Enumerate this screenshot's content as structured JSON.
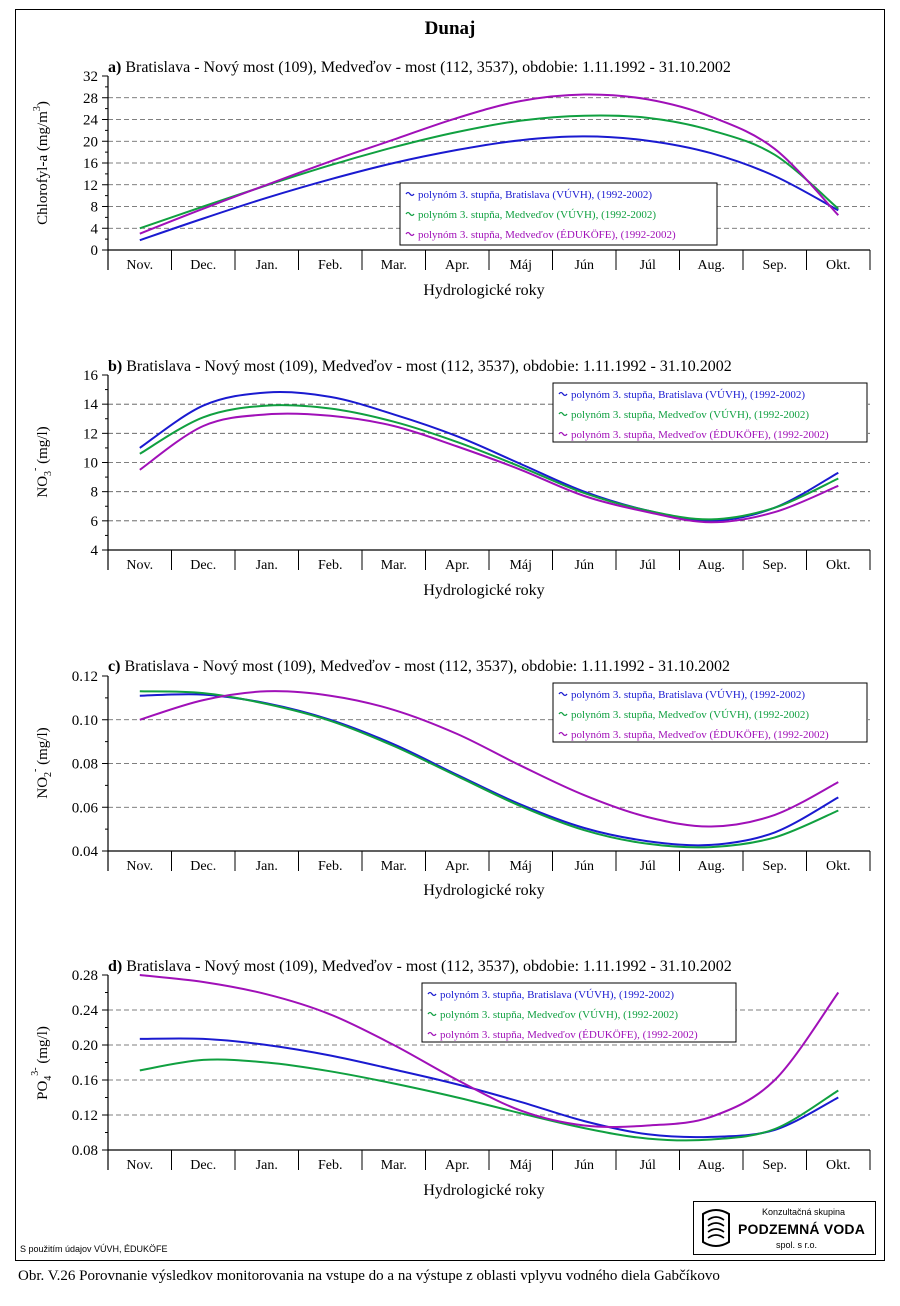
{
  "page_title": "Dunaj",
  "footer_note": "S použitím údajov VÚVH, ÉDUKÖFE",
  "caption": "Obr. V.26 Porovnanie výsledkov monitorovania na vstupe do a na výstupe z oblasti vplyvu vodného diela Gabčíkovo",
  "logo": {
    "top": "Konzultačná skupina",
    "main": "PODZEMNÁ VODA",
    "bottom": "spol. s r.o."
  },
  "colors": {
    "bratislava_vuvh": "#1a1ad0",
    "medvedov_vuvh": "#10a040",
    "medvedov_edukofe": "#a010b8"
  },
  "chart_data": [
    {
      "type": "line",
      "title": "a) Bratislava - Nový most (109), Medveďov - most (112, 3537), obdobie: 1.11.1992 - 31.10.2002",
      "title_bold_prefix": "a)",
      "title_rest": " Bratislava - Nový most (109), Medveďov - most (112, 3537), obdobie: 1.11.1992 - 31.10.2002",
      "ylabel": "Chlorofyl-a  (mg/m³)",
      "ylabel_main": "Chlorofyl-a  (mg/m",
      "ylabel_sup": "3",
      "ylabel_end": ")",
      "xlabel": "Hydrologické roky",
      "categories": [
        "Nov.",
        "Dec.",
        "Jan.",
        "Feb.",
        "Mar.",
        "Apr.",
        "Máj",
        "Jún",
        "Júl",
        "Aug.",
        "Sep.",
        "Okt."
      ],
      "ylim": [
        0,
        32
      ],
      "yticks": [
        "0",
        "4",
        "8",
        "12",
        "16",
        "20",
        "24",
        "28",
        "32"
      ],
      "ytick_values": [
        0,
        4,
        8,
        12,
        16,
        20,
        24,
        28,
        32
      ],
      "legend_position": "center-right",
      "series": [
        {
          "name": "polynóm 3. stupňa, Bratislava (VÚVH), (1992-2002)",
          "color": "#1a1ad0",
          "values": [
            1.8,
            5.8,
            9.6,
            13.0,
            16.0,
            18.4,
            20.2,
            20.9,
            20.1,
            17.8,
            13.6,
            7.3
          ]
        },
        {
          "name": "polynóm 3. stupňa, Medveďov (VÚVH), (1992-2002)",
          "color": "#10a040",
          "values": [
            4.0,
            8.0,
            11.9,
            15.6,
            18.9,
            21.7,
            23.8,
            24.7,
            24.3,
            22.0,
            17.5,
            7.6
          ]
        },
        {
          "name": "polynóm 3. stupňa, Medveďov (ÉDUKÖFE), (1992-2002)",
          "color": "#a010b8",
          "values": [
            3.0,
            7.6,
            12.0,
            16.3,
            20.3,
            24.3,
            27.4,
            28.6,
            27.7,
            24.5,
            18.6,
            6.4
          ]
        }
      ]
    },
    {
      "type": "line",
      "title": "b) Bratislava - Nový most (109), Medveďov - most (112, 3537), obdobie: 1.11.1992 - 31.10.2002",
      "title_bold_prefix": "b)",
      "title_rest": " Bratislava - Nový most (109), Medveďov - most (112, 3537), obdobie: 1.11.1992 - 31.10.2002",
      "ylabel": "NO₃⁻  (mg/l)",
      "ylabel_main": "NO",
      "ylabel_sub": "3",
      "ylabel_sup": "-",
      "ylabel_end": "  (mg/l)",
      "xlabel": "Hydrologické roky",
      "categories": [
        "Nov.",
        "Dec.",
        "Jan.",
        "Feb.",
        "Mar.",
        "Apr.",
        "Máj",
        "Jún",
        "Júl",
        "Aug.",
        "Sep.",
        "Okt."
      ],
      "ylim": [
        4,
        16
      ],
      "yticks": [
        "4",
        "6",
        "8",
        "10",
        "12",
        "14",
        "16"
      ],
      "ytick_values": [
        4,
        6,
        8,
        10,
        12,
        14,
        16
      ],
      "legend_position": "top-right",
      "series": [
        {
          "name": "polynóm 3. stupňa, Bratislava (VÚVH), (1992-2002)",
          "color": "#1a1ad0",
          "values": [
            11.0,
            13.9,
            14.8,
            14.5,
            13.3,
            11.8,
            9.9,
            8.0,
            6.7,
            6.0,
            6.9,
            9.3
          ]
        },
        {
          "name": "polynóm 3. stupňa, Medveďov (VÚVH), (1992-2002)",
          "color": "#10a040",
          "values": [
            10.6,
            13.1,
            13.9,
            13.7,
            12.8,
            11.4,
            9.7,
            7.9,
            6.7,
            6.1,
            6.9,
            8.9
          ]
        },
        {
          "name": "polynóm 3. stupňa, Medveďov (ÉDUKÖFE), (1992-2002)",
          "color": "#a010b8",
          "values": [
            9.5,
            12.5,
            13.3,
            13.2,
            12.5,
            11.1,
            9.5,
            7.7,
            6.6,
            5.9,
            6.6,
            8.4
          ]
        }
      ]
    },
    {
      "type": "line",
      "title": "c) Bratislava - Nový most (109), Medveďov - most (112, 3537), obdobie: 1.11.1992 - 31.10.2002",
      "title_bold_prefix": "c)",
      "title_rest": " Bratislava - Nový most (109), Medveďov - most (112, 3537), obdobie: 1.11.1992 - 31.10.2002",
      "ylabel": "NO₂⁻  (mg/l)",
      "ylabel_main": "NO",
      "ylabel_sub": "2",
      "ylabel_sup": "-",
      "ylabel_end": "  (mg/l)",
      "xlabel": "Hydrologické roky",
      "categories": [
        "Nov.",
        "Dec.",
        "Jan.",
        "Feb.",
        "Mar.",
        "Apr.",
        "Máj",
        "Jún",
        "Júl",
        "Aug.",
        "Sep.",
        "Okt."
      ],
      "ylim": [
        0.04,
        0.12
      ],
      "yticks": [
        "0.04",
        "0.06",
        "0.08",
        "0.10",
        "0.12"
      ],
      "ytick_values": [
        0.04,
        0.06,
        0.08,
        0.1,
        0.12
      ],
      "legend_position": "top-right",
      "series": [
        {
          "name": "polynóm 3. stupňa, Bratislava (VÚVH), (1992-2002)",
          "color": "#1a1ad0",
          "values": [
            0.111,
            0.1115,
            0.1075,
            0.1,
            0.0888,
            0.0748,
            0.0612,
            0.0505,
            0.0445,
            0.0428,
            0.0485,
            0.0645
          ]
        },
        {
          "name": "polynóm 3. stupňa, Medveďov (VÚVH), (1992-2002)",
          "color": "#10a040",
          "values": [
            0.113,
            0.1122,
            0.1072,
            0.0995,
            0.088,
            0.0742,
            0.0605,
            0.0495,
            0.0433,
            0.0418,
            0.0462,
            0.0585
          ]
        },
        {
          "name": "polynóm 3. stupňa, Medveďov (ÉDUKÖFE), (1992-2002)",
          "color": "#a010b8",
          "values": [
            0.1,
            0.109,
            0.113,
            0.111,
            0.1045,
            0.0935,
            0.079,
            0.0655,
            0.0555,
            0.0512,
            0.0565,
            0.0715
          ]
        }
      ]
    },
    {
      "type": "line",
      "title": "d) Bratislava - Nový most (109), Medveďov - most (112, 3537), obdobie: 1.11.1992 - 31.10.2002",
      "title_bold_prefix": "d)",
      "title_rest": " Bratislava - Nový most (109), Medveďov - most (112, 3537), obdobie: 1.11.1992 - 31.10.2002",
      "ylabel": "PO₄³⁻  (mg/l)",
      "ylabel_main": "PO",
      "ylabel_sub": "4",
      "ylabel_sup": "3-",
      "ylabel_end": "  (mg/l)",
      "xlabel": "Hydrologické roky",
      "categories": [
        "Nov.",
        "Dec.",
        "Jan.",
        "Feb.",
        "Mar.",
        "Apr.",
        "Máj",
        "Jún",
        "Júl",
        "Aug.",
        "Sep.",
        "Okt."
      ],
      "ylim": [
        0.08,
        0.28
      ],
      "yticks": [
        "0.08",
        "0.12",
        "0.16",
        "0.20",
        "0.24",
        "0.28"
      ],
      "ytick_values": [
        0.08,
        0.12,
        0.16,
        0.2,
        0.24,
        0.28
      ],
      "legend_position": "top-right",
      "series": [
        {
          "name": "polynóm 3. stupňa, Bratislava (VÚVH), (1992-2002)",
          "color": "#1a1ad0",
          "values": [
            0.207,
            0.207,
            0.2,
            0.188,
            0.172,
            0.155,
            0.135,
            0.113,
            0.098,
            0.095,
            0.103,
            0.14
          ]
        },
        {
          "name": "polynóm 3. stupňa, Medveďov (VÚVH), (1992-2002)",
          "color": "#10a040",
          "values": [
            0.171,
            0.183,
            0.18,
            0.17,
            0.156,
            0.14,
            0.122,
            0.105,
            0.093,
            0.092,
            0.104,
            0.148
          ]
        },
        {
          "name": "polynóm 3. stupňa, Medveďov (ÉDUKÖFE), (1992-2002)",
          "color": "#a010b8",
          "values": [
            0.28,
            0.272,
            0.258,
            0.235,
            0.2,
            0.16,
            0.125,
            0.108,
            0.108,
            0.118,
            0.16,
            0.26
          ]
        }
      ]
    }
  ]
}
